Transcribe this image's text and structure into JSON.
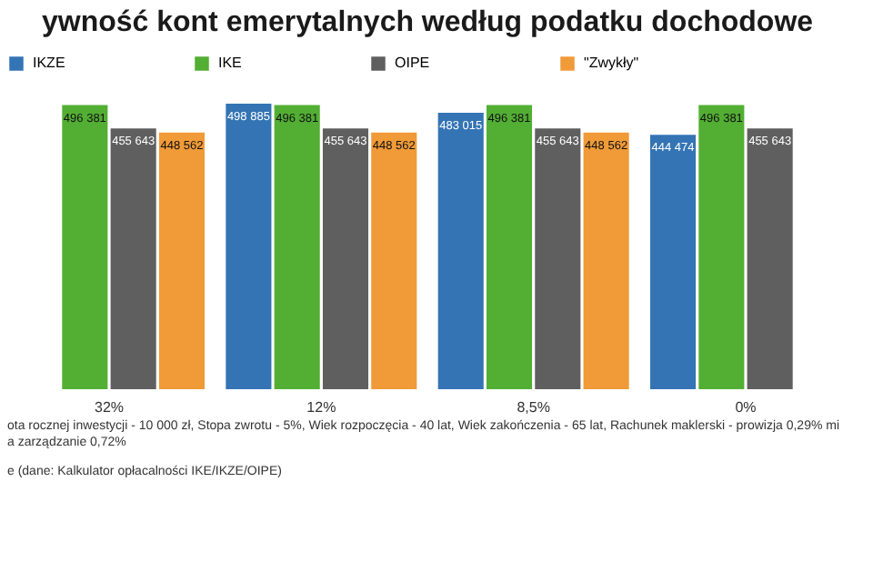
{
  "chart_data": {
    "type": "bar",
    "title": "ywność kont emerytalnych według podatku dochodowe",
    "categories": [
      "32%",
      "12%",
      "8,5%",
      "0%"
    ],
    "series": [
      {
        "name": "IKZE",
        "color": "#3474b4",
        "values": [
          null,
          498885,
          483015,
          444474
        ]
      },
      {
        "name": "IKE",
        "color": "#53ae34",
        "values": [
          496381,
          496381,
          496381,
          496381
        ]
      },
      {
        "name": "OIPE",
        "color": "#5f5f5f",
        "values": [
          455643,
          455643,
          455643,
          455643
        ]
      },
      {
        "name": "\"Zwykły\"",
        "color": "#f09a38",
        "values": [
          448562,
          448562,
          448562,
          null
        ]
      }
    ],
    "data_labels": true,
    "legend": "top",
    "grid": false,
    "annotations": [
      "ota rocznej inwestycji - 10 000 zł, Stopa zwrotu - 5%, Wiek rozpoczęcia - 40 lat, Wiek zakończenia - 65 lat, Rachunek maklerski - prowizja 0,29% mi",
      "a zarządzanie 0,72%",
      "e (dane: Kalkulator opłacalności IKE/IKZE/OIPE)"
    ]
  }
}
